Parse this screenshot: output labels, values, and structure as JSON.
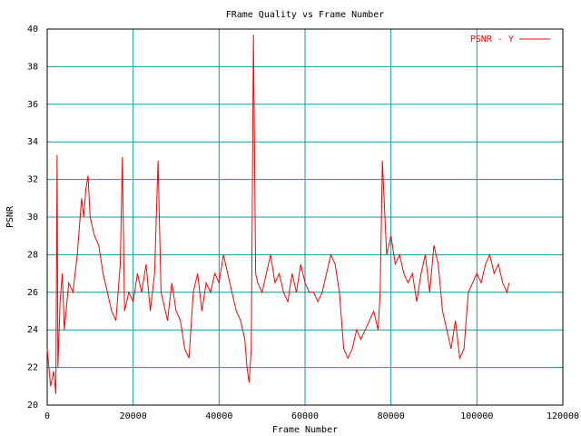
{
  "chart_data": {
    "type": "line",
    "title": "FRame Quality vs Frame Number",
    "xlabel": "Frame Number",
    "ylabel": "PSNR",
    "xlim": [
      0,
      120000
    ],
    "ylim": [
      20,
      40
    ],
    "xticks": [
      0,
      20000,
      40000,
      60000,
      80000,
      100000,
      120000
    ],
    "yticks": [
      20,
      22,
      24,
      26,
      28,
      30,
      32,
      34,
      36,
      38,
      40
    ],
    "grid": true,
    "grid_color": "#00a0a0",
    "legend_position": "top-right",
    "series": [
      {
        "name": "PSNR - Y",
        "color": "#ff0000",
        "x": [
          0,
          800,
          1500,
          2000,
          2300,
          2500,
          3000,
          3500,
          4000,
          5000,
          6000,
          7000,
          7500,
          8000,
          8500,
          9000,
          9500,
          10000,
          11000,
          12000,
          13000,
          14000,
          15000,
          16000,
          17000,
          17500,
          18000,
          19000,
          20000,
          21000,
          22000,
          23000,
          24000,
          25000,
          25800,
          26500,
          27000,
          28000,
          29000,
          30000,
          31000,
          32000,
          33000,
          34000,
          35000,
          36000,
          37000,
          38000,
          39000,
          40000,
          41000,
          42000,
          43000,
          44000,
          45000,
          46000,
          46500,
          47000,
          47500,
          48000,
          48500,
          49000,
          50000,
          51000,
          52000,
          53000,
          54000,
          55000,
          56000,
          57000,
          58000,
          59000,
          60000,
          61000,
          62000,
          63000,
          64000,
          65000,
          66000,
          67000,
          68000,
          69000,
          70000,
          71000,
          72000,
          73000,
          74000,
          75000,
          76000,
          77000,
          77500,
          78000,
          79000,
          80000,
          81000,
          82000,
          83000,
          84000,
          85000,
          86000,
          87000,
          88000,
          89000,
          90000,
          91000,
          92000,
          93000,
          94000,
          95000,
          96000,
          97000,
          98000,
          99000,
          100000,
          101000,
          102000,
          103000,
          104000,
          105000,
          106000,
          107000,
          107500
        ],
        "y": [
          23.0,
          21.0,
          21.8,
          20.6,
          33.3,
          22.0,
          25.5,
          27.0,
          24.0,
          26.5,
          26.0,
          28.0,
          29.5,
          31.0,
          30.0,
          31.5,
          32.2,
          30.0,
          29.0,
          28.5,
          27.0,
          26.0,
          25.0,
          24.5,
          27.5,
          33.2,
          25.0,
          26.0,
          25.5,
          27.0,
          26.0,
          27.5,
          25.0,
          27.0,
          33.0,
          26.0,
          25.5,
          24.5,
          26.5,
          25.0,
          24.5,
          23.0,
          22.5,
          26.0,
          27.0,
          25.0,
          26.5,
          26.0,
          27.0,
          26.5,
          28.0,
          27.0,
          26.0,
          25.0,
          24.5,
          23.5,
          22.0,
          21.2,
          23.0,
          39.7,
          27.0,
          26.5,
          26.0,
          27.0,
          28.0,
          26.5,
          27.0,
          26.0,
          25.5,
          27.0,
          26.0,
          27.5,
          26.5,
          26.0,
          26.0,
          25.5,
          26.0,
          27.0,
          28.0,
          27.5,
          26.0,
          23.0,
          22.5,
          23.0,
          24.0,
          23.5,
          24.0,
          24.5,
          25.0,
          24.0,
          26.0,
          33.0,
          28.0,
          29.0,
          27.5,
          28.0,
          27.0,
          26.5,
          27.0,
          25.5,
          27.0,
          28.0,
          26.0,
          28.5,
          27.5,
          25.0,
          24.0,
          23.0,
          24.5,
          22.5,
          23.0,
          26.0,
          26.5,
          27.0,
          26.5,
          27.5,
          28.0,
          27.0,
          27.5,
          26.5,
          26.0,
          26.5
        ]
      }
    ]
  }
}
